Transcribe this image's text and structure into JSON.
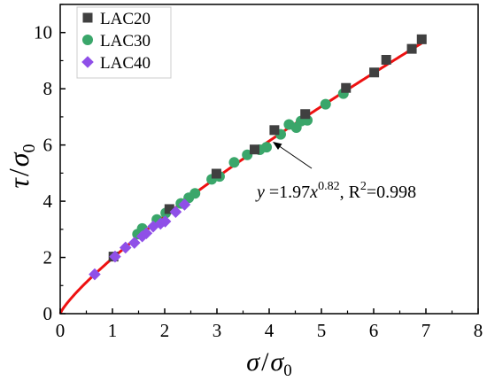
{
  "chart_data": {
    "type": "scatter",
    "xlim": [
      0,
      8
    ],
    "ylim": [
      0,
      11
    ],
    "x_ticks": [
      0,
      1,
      2,
      3,
      4,
      5,
      6,
      7,
      8
    ],
    "y_ticks": [
      0,
      2,
      4,
      6,
      8,
      10
    ],
    "x_tick_labels": [
      "0",
      "1",
      "2",
      "3",
      "4",
      "5",
      "6",
      "7",
      "8"
    ],
    "y_tick_labels": [
      "0",
      "2",
      "4",
      "6",
      "8",
      "10"
    ],
    "xlabel": {
      "main": "σ",
      "sep": "/",
      "base": "σ",
      "sub": "0"
    },
    "ylabel": {
      "main": "τ",
      "sep": "/",
      "base": "σ",
      "sub": "0"
    },
    "legend_position": "top-left",
    "series": [
      {
        "name": "LAC20",
        "marker": "square",
        "color": "#404040",
        "points": [
          [
            1.02,
            2.03
          ],
          [
            2.09,
            3.72
          ],
          [
            2.99,
            4.98
          ],
          [
            3.72,
            5.84
          ],
          [
            4.1,
            6.53
          ],
          [
            4.69,
            7.1
          ],
          [
            5.47,
            8.03
          ],
          [
            6.01,
            8.58
          ],
          [
            6.24,
            9.03
          ],
          [
            6.73,
            9.42
          ],
          [
            6.92,
            9.76
          ]
        ]
      },
      {
        "name": "LAC30",
        "marker": "circle",
        "color": "#3aa66a",
        "points": [
          [
            1.48,
            2.83
          ],
          [
            1.57,
            3.03
          ],
          [
            1.85,
            3.35
          ],
          [
            2.02,
            3.58
          ],
          [
            2.31,
            3.92
          ],
          [
            2.46,
            4.12
          ],
          [
            2.58,
            4.28
          ],
          [
            2.9,
            4.78
          ],
          [
            3.05,
            4.88
          ],
          [
            3.33,
            5.38
          ],
          [
            3.58,
            5.65
          ],
          [
            3.82,
            5.83
          ],
          [
            3.95,
            5.92
          ],
          [
            4.22,
            6.38
          ],
          [
            4.38,
            6.73
          ],
          [
            4.52,
            6.62
          ],
          [
            4.61,
            6.85
          ],
          [
            4.73,
            6.88
          ],
          [
            5.08,
            7.45
          ],
          [
            5.42,
            7.83
          ]
        ]
      },
      {
        "name": "LAC40",
        "marker": "diamond",
        "color": "#8f4fe8",
        "points": [
          [
            0.66,
            1.4
          ],
          [
            1.05,
            2.03
          ],
          [
            1.25,
            2.35
          ],
          [
            1.42,
            2.52
          ],
          [
            1.57,
            2.75
          ],
          [
            1.65,
            2.86
          ],
          [
            1.78,
            3.1
          ],
          [
            1.92,
            3.2
          ],
          [
            2.01,
            3.28
          ],
          [
            2.21,
            3.62
          ],
          [
            2.38,
            3.88
          ]
        ]
      }
    ],
    "fit": {
      "color": "#ee1111",
      "equation": "y = 1.97x^0.82",
      "label_parts": [
        "y",
        " =1.97",
        "x",
        "0.82",
        ", R",
        "2",
        "=0.998"
      ],
      "coef": 1.97,
      "exponent": 0.82,
      "x_range": [
        0,
        6.92
      ]
    }
  }
}
